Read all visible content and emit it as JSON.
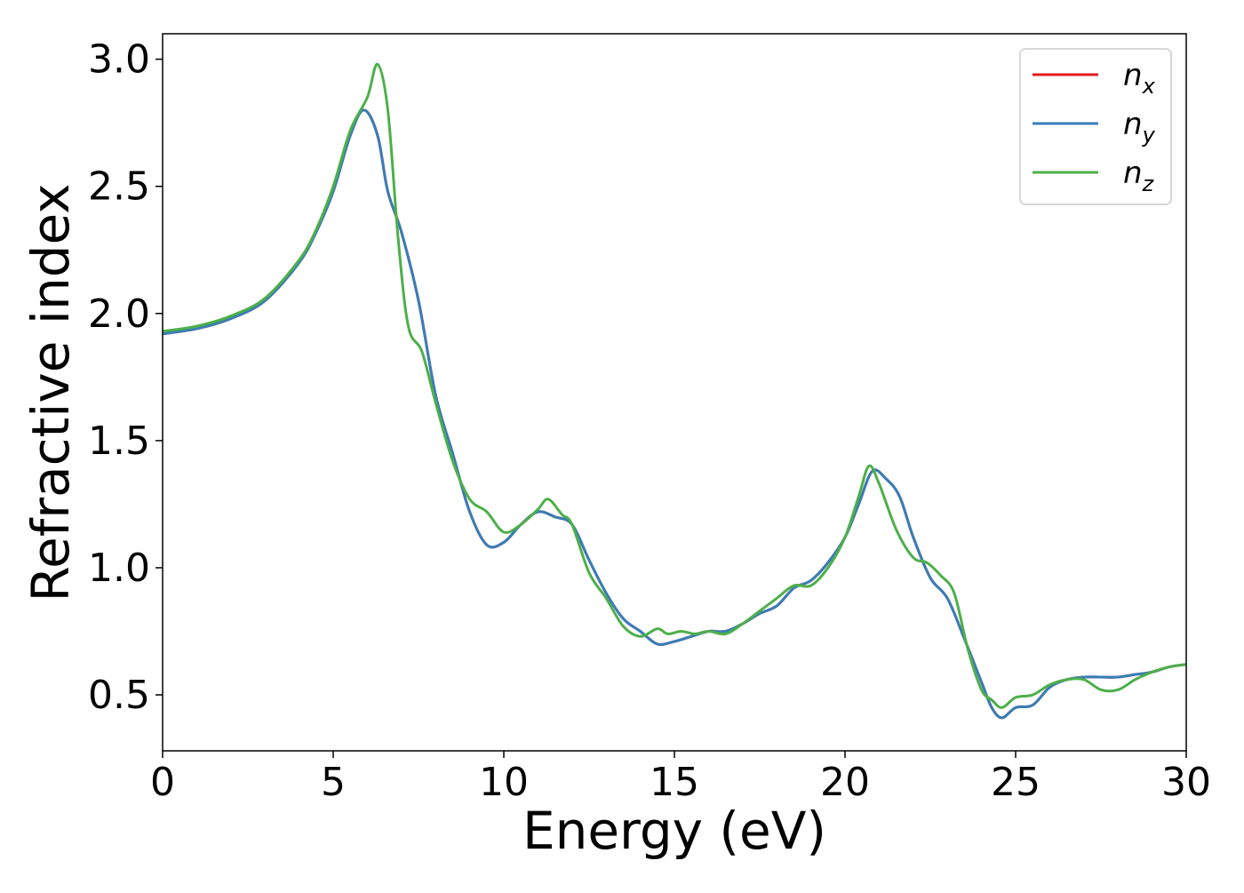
{
  "chart_data": {
    "type": "line",
    "xlabel": "Energy (eV)",
    "ylabel": "Refractive index",
    "xlim": [
      0,
      30
    ],
    "ylim": [
      0.28,
      3.1
    ],
    "xticks": [
      0,
      5,
      10,
      15,
      20,
      25,
      30
    ],
    "xtick_labels": [
      "0",
      "5",
      "10",
      "15",
      "20",
      "25",
      "30"
    ],
    "yticks": [
      0.5,
      1.0,
      1.5,
      2.0,
      2.5,
      3.0
    ],
    "ytick_labels": [
      "0.5",
      "1.0",
      "1.5",
      "2.0",
      "2.5",
      "3.0"
    ],
    "grid": false,
    "legend": {
      "position": "top-right",
      "entries": [
        {
          "base": "n",
          "sub": "x",
          "color": "#e41a1c"
        },
        {
          "base": "n",
          "sub": "y",
          "color": "#377eb8"
        },
        {
          "base": "n",
          "sub": "z",
          "color": "#4daf4a"
        }
      ]
    },
    "series": [
      {
        "name": "n_x",
        "color": "#e41a1c",
        "x": [
          0,
          1,
          2,
          3,
          4,
          4.5,
          5,
          5.5,
          5.9,
          6.3,
          6.6,
          7.0,
          7.5,
          8.0,
          8.5,
          9.0,
          9.5,
          10.0,
          10.5,
          11.0,
          11.5,
          12.0,
          12.5,
          13.0,
          13.5,
          14.0,
          14.5,
          15.0,
          15.5,
          16.0,
          16.5,
          17.0,
          17.5,
          18.0,
          18.5,
          19.0,
          19.5,
          20.0,
          20.4,
          20.8,
          21.2,
          21.6,
          22.0,
          22.5,
          23.0,
          23.5,
          24.0,
          24.3,
          24.6,
          25.0,
          25.5,
          26.0,
          26.5,
          27.0,
          27.5,
          28.0,
          28.5,
          29.0,
          29.5,
          30.0
        ],
        "y": [
          1.92,
          1.94,
          1.98,
          2.05,
          2.2,
          2.32,
          2.48,
          2.7,
          2.8,
          2.7,
          2.48,
          2.32,
          2.05,
          1.68,
          1.45,
          1.22,
          1.09,
          1.1,
          1.17,
          1.22,
          1.2,
          1.17,
          1.03,
          0.9,
          0.8,
          0.75,
          0.7,
          0.71,
          0.73,
          0.75,
          0.75,
          0.78,
          0.82,
          0.85,
          0.92,
          0.95,
          1.02,
          1.12,
          1.25,
          1.38,
          1.35,
          1.28,
          1.12,
          0.96,
          0.88,
          0.72,
          0.55,
          0.45,
          0.41,
          0.45,
          0.46,
          0.53,
          0.56,
          0.57,
          0.57,
          0.57,
          0.58,
          0.59,
          0.61,
          0.62
        ]
      },
      {
        "name": "n_y",
        "color": "#377eb8",
        "x": [
          0,
          1,
          2,
          3,
          4,
          4.5,
          5,
          5.5,
          5.9,
          6.3,
          6.6,
          7.0,
          7.5,
          8.0,
          8.5,
          9.0,
          9.5,
          10.0,
          10.5,
          11.0,
          11.5,
          12.0,
          12.5,
          13.0,
          13.5,
          14.0,
          14.5,
          15.0,
          15.5,
          16.0,
          16.5,
          17.0,
          17.5,
          18.0,
          18.5,
          19.0,
          19.5,
          20.0,
          20.4,
          20.8,
          21.2,
          21.6,
          22.0,
          22.5,
          23.0,
          23.5,
          24.0,
          24.3,
          24.6,
          25.0,
          25.5,
          26.0,
          26.5,
          27.0,
          27.5,
          28.0,
          28.5,
          29.0,
          29.5,
          30.0
        ],
        "y": [
          1.92,
          1.94,
          1.98,
          2.05,
          2.2,
          2.32,
          2.48,
          2.7,
          2.8,
          2.7,
          2.48,
          2.32,
          2.05,
          1.68,
          1.45,
          1.22,
          1.09,
          1.1,
          1.17,
          1.22,
          1.2,
          1.17,
          1.03,
          0.9,
          0.8,
          0.75,
          0.7,
          0.71,
          0.73,
          0.75,
          0.75,
          0.78,
          0.82,
          0.85,
          0.92,
          0.95,
          1.02,
          1.12,
          1.25,
          1.38,
          1.35,
          1.28,
          1.12,
          0.96,
          0.88,
          0.72,
          0.55,
          0.45,
          0.41,
          0.45,
          0.46,
          0.53,
          0.56,
          0.57,
          0.57,
          0.57,
          0.58,
          0.59,
          0.61,
          0.62
        ]
      },
      {
        "name": "n_z",
        "color": "#4daf4a",
        "x": [
          0,
          1,
          2,
          3,
          4,
          4.5,
          5,
          5.5,
          6.0,
          6.3,
          6.6,
          6.9,
          7.2,
          7.6,
          8.0,
          8.5,
          9.0,
          9.5,
          10.0,
          10.5,
          11.0,
          11.3,
          11.7,
          12.0,
          12.5,
          13.0,
          13.5,
          14.0,
          14.5,
          14.8,
          15.2,
          15.6,
          16.0,
          16.5,
          17.0,
          17.5,
          18.0,
          18.5,
          19.0,
          19.5,
          20.0,
          20.4,
          20.7,
          21.0,
          21.5,
          22.0,
          22.4,
          22.8,
          23.2,
          23.6,
          24.0,
          24.3,
          24.6,
          25.0,
          25.5,
          26.0,
          26.5,
          27.0,
          27.5,
          28.0,
          28.5,
          29.0,
          29.5,
          30.0
        ],
        "y": [
          1.93,
          1.95,
          1.99,
          2.06,
          2.21,
          2.33,
          2.5,
          2.72,
          2.85,
          2.98,
          2.8,
          2.3,
          1.95,
          1.85,
          1.65,
          1.42,
          1.27,
          1.22,
          1.14,
          1.17,
          1.23,
          1.27,
          1.21,
          1.17,
          0.98,
          0.88,
          0.77,
          0.73,
          0.76,
          0.74,
          0.75,
          0.74,
          0.75,
          0.74,
          0.78,
          0.83,
          0.88,
          0.93,
          0.93,
          1.0,
          1.12,
          1.28,
          1.4,
          1.33,
          1.15,
          1.04,
          1.02,
          0.97,
          0.9,
          0.68,
          0.52,
          0.48,
          0.45,
          0.49,
          0.5,
          0.54,
          0.56,
          0.56,
          0.52,
          0.52,
          0.56,
          0.59,
          0.61,
          0.62
        ]
      }
    ]
  }
}
